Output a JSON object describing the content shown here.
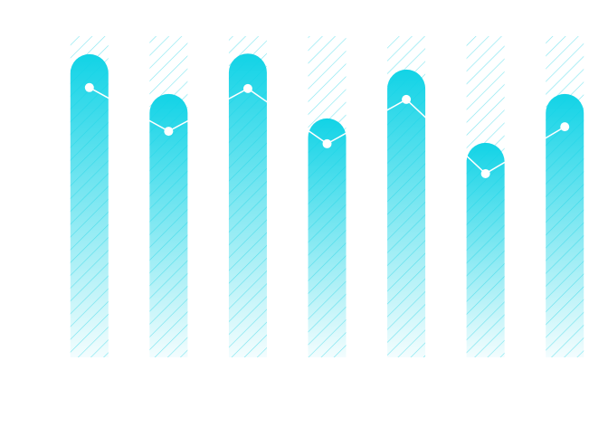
{
  "chart_data": {
    "type": "bar",
    "categories": [
      null,
      null,
      null,
      null,
      null,
      null,
      null
    ],
    "series": [
      {
        "type": "bar",
        "color": "#12d3e6",
        "values": [
          94.4,
          82,
          94.6,
          74.4,
          89.6,
          66.8,
          82
        ]
      },
      {
        "type": "line",
        "color": "#ffffff",
        "values": [
          84,
          70.4,
          83.7,
          66.5,
          80.3,
          57.2,
          71.8
        ]
      }
    ],
    "hatch_color": "#7fe6f0",
    "ylim": [
      0,
      100
    ]
  }
}
